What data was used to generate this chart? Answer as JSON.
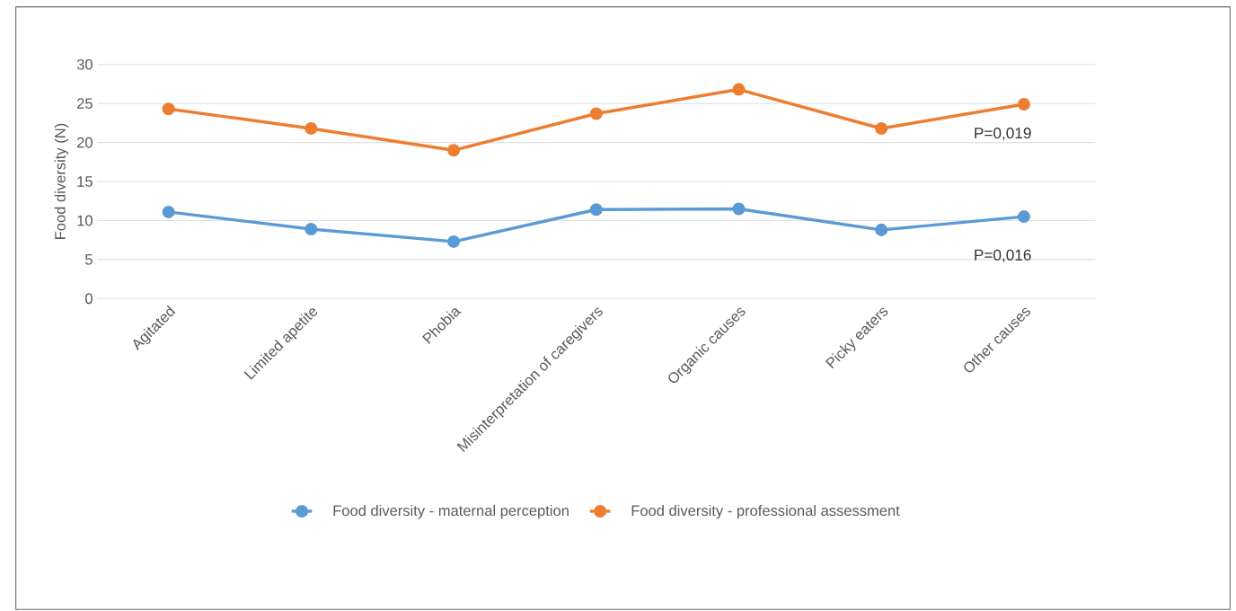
{
  "chart_data": {
    "type": "line",
    "ylabel": "Food diversity (N)",
    "categories": [
      "Agitated",
      "Limited apetite",
      "Phobia",
      "Misinterpretation of caregivers",
      "Organic causes",
      "Picky eaters",
      "Other causes"
    ],
    "series": [
      {
        "name": "Food diversity - maternal perception",
        "color": "#5b9bd5",
        "values": [
          11.1,
          8.9,
          7.3,
          11.4,
          11.5,
          8.8,
          10.5
        ]
      },
      {
        "name": "Food diversity - professional assessment",
        "color": "#ed7d31",
        "values": [
          24.3,
          21.8,
          19.0,
          23.7,
          26.8,
          21.8,
          24.9
        ]
      }
    ],
    "annotations": [
      "P=0,016",
      "P=0,019"
    ],
    "ylim": [
      0,
      30
    ],
    "yticks": [
      0,
      5,
      10,
      15,
      20,
      25,
      30
    ],
    "grid": "y",
    "legend": "bottom",
    "marker": "circle",
    "line_style": "solid"
  }
}
